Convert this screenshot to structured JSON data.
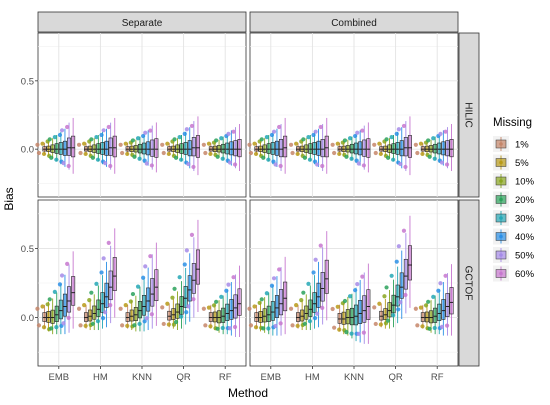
{
  "chart_data": {
    "type": "box",
    "ylabel": "Bias",
    "xlabel": "Method",
    "columns": [
      "Separate",
      "Combined"
    ],
    "rows": [
      "HILIC",
      "GCTOF"
    ],
    "methods": [
      "EMB",
      "HM",
      "KNN",
      "QR",
      "RF"
    ],
    "ylim": [
      -0.35,
      0.85
    ],
    "yticks": [
      0.0,
      0.5
    ],
    "ytick_labels": [
      "0.0",
      "0.5"
    ],
    "grid": true,
    "legend": {
      "title": "Missing",
      "position": "right",
      "entries": [
        {
          "label": "1%",
          "color": "#c5866a"
        },
        {
          "label": "5%",
          "color": "#b89a18"
        },
        {
          "label": "10%",
          "color": "#8aa620"
        },
        {
          "label": "20%",
          "color": "#2aa15a"
        },
        {
          "label": "30%",
          "color": "#23a7b5"
        },
        {
          "label": "40%",
          "color": "#2a8fe6"
        },
        {
          "label": "50%",
          "color": "#a68be8"
        },
        {
          "label": "60%",
          "color": "#c777cf"
        }
      ]
    },
    "panels": [
      {
        "row": "HILIC",
        "col": "Separate",
        "medians": [
          [
            0.0,
            0.0,
            0.0,
            0.0,
            0.0,
            0.0,
            0.01,
            0.01
          ],
          [
            0.0,
            0.0,
            0.0,
            0.0,
            0.0,
            0.0,
            0.01,
            0.01
          ],
          [
            0.0,
            0.0,
            0.0,
            0.0,
            0.0,
            0.0,
            0.0,
            0.0
          ],
          [
            0.0,
            0.0,
            0.0,
            0.0,
            0.0,
            0.0,
            0.01,
            0.01
          ],
          [
            0.0,
            0.0,
            0.0,
            0.0,
            0.0,
            0.0,
            0.0,
            0.0
          ]
        ],
        "spreads": [
          [
            0.04,
            0.05,
            0.07,
            0.09,
            0.11,
            0.13,
            0.16,
            0.19
          ],
          [
            0.04,
            0.05,
            0.07,
            0.09,
            0.11,
            0.13,
            0.16,
            0.19
          ],
          [
            0.04,
            0.05,
            0.06,
            0.08,
            0.1,
            0.12,
            0.15,
            0.17
          ],
          [
            0.04,
            0.05,
            0.07,
            0.09,
            0.11,
            0.14,
            0.17,
            0.2
          ],
          [
            0.04,
            0.05,
            0.06,
            0.08,
            0.1,
            0.12,
            0.14,
            0.16
          ]
        ]
      },
      {
        "row": "HILIC",
        "col": "Combined",
        "medians": [
          [
            0.0,
            0.0,
            0.0,
            0.0,
            0.0,
            0.0,
            0.0,
            0.01
          ],
          [
            0.0,
            0.0,
            0.0,
            0.0,
            0.0,
            0.0,
            0.0,
            0.01
          ],
          [
            0.0,
            0.0,
            0.0,
            0.0,
            0.0,
            0.0,
            0.0,
            0.0
          ],
          [
            0.0,
            0.0,
            0.0,
            0.0,
            0.0,
            0.0,
            0.01,
            0.01
          ],
          [
            0.0,
            0.0,
            0.0,
            0.0,
            0.0,
            0.0,
            0.0,
            0.0
          ]
        ],
        "spreads": [
          [
            0.04,
            0.05,
            0.07,
            0.09,
            0.11,
            0.13,
            0.16,
            0.19
          ],
          [
            0.04,
            0.05,
            0.07,
            0.09,
            0.11,
            0.13,
            0.16,
            0.19
          ],
          [
            0.04,
            0.05,
            0.06,
            0.08,
            0.1,
            0.12,
            0.15,
            0.17
          ],
          [
            0.04,
            0.05,
            0.07,
            0.09,
            0.11,
            0.14,
            0.17,
            0.2
          ],
          [
            0.04,
            0.05,
            0.06,
            0.08,
            0.1,
            0.12,
            0.14,
            0.16
          ]
        ]
      },
      {
        "row": "GCTOF",
        "col": "Separate",
        "medians": [
          [
            0.0,
            0.0,
            0.0,
            0.02,
            0.05,
            0.08,
            0.12,
            0.18
          ],
          [
            0.0,
            0.01,
            0.03,
            0.06,
            0.1,
            0.15,
            0.22,
            0.3
          ],
          [
            0.0,
            0.01,
            0.02,
            0.05,
            0.08,
            0.12,
            0.17,
            0.22
          ],
          [
            0.01,
            0.02,
            0.04,
            0.08,
            0.14,
            0.2,
            0.27,
            0.35
          ],
          [
            0.0,
            0.0,
            0.0,
            0.01,
            0.03,
            0.05,
            0.07,
            0.1
          ]
        ],
        "spreads": [
          [
            0.08,
            0.1,
            0.12,
            0.14,
            0.17,
            0.2,
            0.23,
            0.26
          ],
          [
            0.08,
            0.1,
            0.12,
            0.15,
            0.18,
            0.22,
            0.26,
            0.3
          ],
          [
            0.08,
            0.1,
            0.12,
            0.15,
            0.18,
            0.21,
            0.25,
            0.28
          ],
          [
            0.08,
            0.1,
            0.13,
            0.16,
            0.19,
            0.23,
            0.27,
            0.31
          ],
          [
            0.08,
            0.09,
            0.11,
            0.13,
            0.15,
            0.18,
            0.21,
            0.24
          ]
        ]
      },
      {
        "row": "GCTOF",
        "col": "Combined",
        "medians": [
          [
            0.0,
            0.0,
            0.01,
            0.02,
            0.04,
            0.07,
            0.1,
            0.14
          ],
          [
            0.0,
            0.01,
            0.03,
            0.06,
            0.1,
            0.15,
            0.21,
            0.28
          ],
          [
            -0.01,
            -0.01,
            0.0,
            0.0,
            0.01,
            0.03,
            0.05,
            0.08
          ],
          [
            0.01,
            0.02,
            0.05,
            0.09,
            0.15,
            0.22,
            0.3,
            0.38
          ],
          [
            0.0,
            0.0,
            0.0,
            0.01,
            0.03,
            0.05,
            0.08,
            0.11
          ]
        ],
        "spreads": [
          [
            0.08,
            0.1,
            0.12,
            0.14,
            0.17,
            0.2,
            0.23,
            0.26
          ],
          [
            0.08,
            0.1,
            0.12,
            0.15,
            0.18,
            0.22,
            0.26,
            0.3
          ],
          [
            0.09,
            0.11,
            0.13,
            0.15,
            0.18,
            0.21,
            0.24,
            0.27
          ],
          [
            0.08,
            0.1,
            0.13,
            0.16,
            0.19,
            0.23,
            0.27,
            0.31
          ],
          [
            0.08,
            0.09,
            0.11,
            0.13,
            0.15,
            0.18,
            0.21,
            0.24
          ]
        ]
      }
    ]
  }
}
